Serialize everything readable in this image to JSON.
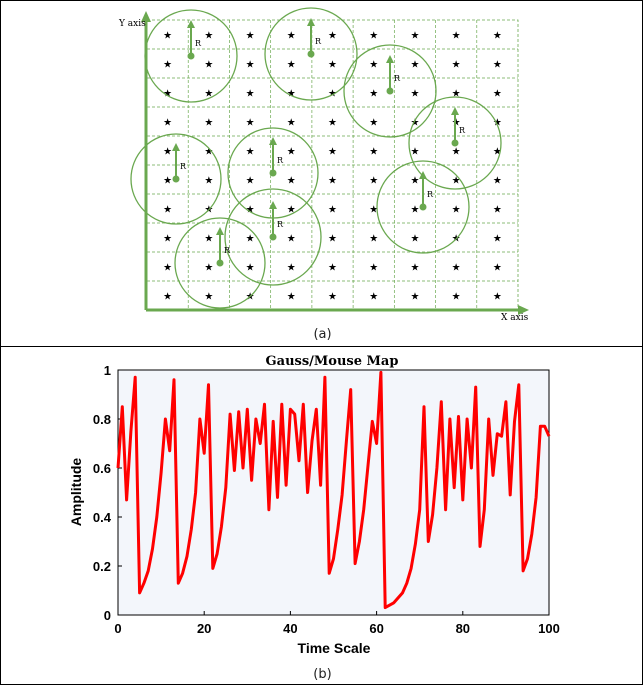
{
  "colors": {
    "green": "#6aa84f",
    "red": "#ff0000",
    "plot_bg": "#f3f6fb",
    "black": "#000000"
  },
  "diagram": {
    "y_axis_label": "Y axis",
    "x_axis_label": "X axis",
    "radius_label": "R",
    "caption": "(a)",
    "marker": "★",
    "grid_cols": 9,
    "grid_rows": 10,
    "circle_count": 9
  },
  "chart_data": {
    "type": "line",
    "title": "Gauss/Mouse Map",
    "xlabel": "Time Scale",
    "ylabel": "Amplitude",
    "xlim": [
      0,
      100
    ],
    "ylim": [
      0,
      1
    ],
    "xticks": [
      0,
      20,
      40,
      60,
      80,
      100
    ],
    "yticks": [
      0,
      0.2,
      0.4,
      0.6,
      0.8,
      1
    ],
    "series": [
      {
        "color": "#ff0000",
        "x": [
          0,
          1,
          2,
          3,
          4,
          5,
          6,
          7,
          8,
          9,
          10,
          11,
          12,
          13,
          14,
          15,
          16,
          17,
          18,
          19,
          20,
          21,
          22,
          23,
          24,
          25,
          26,
          27,
          28,
          29,
          30,
          31,
          32,
          33,
          34,
          35,
          36,
          37,
          38,
          39,
          40,
          41,
          42,
          43,
          44,
          45,
          46,
          47,
          48,
          49,
          50,
          51,
          52,
          53,
          54,
          55,
          56,
          57,
          58,
          59,
          60,
          61,
          62,
          63,
          64,
          65,
          66,
          67,
          68,
          69,
          70,
          71,
          72,
          73,
          74,
          75,
          76,
          77,
          78,
          79,
          80,
          81,
          82,
          83,
          84,
          85,
          86,
          87,
          88,
          89,
          90,
          91,
          92,
          93,
          94,
          95,
          96,
          97,
          98,
          99,
          100
        ],
        "y": [
          0.6,
          0.85,
          0.47,
          0.75,
          0.97,
          0.09,
          0.13,
          0.18,
          0.27,
          0.4,
          0.58,
          0.8,
          0.67,
          0.96,
          0.13,
          0.17,
          0.24,
          0.35,
          0.5,
          0.8,
          0.66,
          0.94,
          0.19,
          0.25,
          0.36,
          0.52,
          0.82,
          0.59,
          0.83,
          0.6,
          0.84,
          0.55,
          0.8,
          0.7,
          0.86,
          0.43,
          0.79,
          0.48,
          0.86,
          0.53,
          0.84,
          0.82,
          0.63,
          0.86,
          0.5,
          0.71,
          0.84,
          0.53,
          0.97,
          0.17,
          0.23,
          0.35,
          0.49,
          0.71,
          0.92,
          0.21,
          0.3,
          0.43,
          0.61,
          0.79,
          0.7,
          0.99,
          0.03,
          0.04,
          0.05,
          0.07,
          0.09,
          0.13,
          0.19,
          0.29,
          0.43,
          0.85,
          0.3,
          0.41,
          0.6,
          0.87,
          0.43,
          0.8,
          0.52,
          0.81,
          0.47,
          0.8,
          0.6,
          0.93,
          0.28,
          0.43,
          0.8,
          0.57,
          0.74,
          0.73,
          0.87,
          0.49,
          0.79,
          0.94,
          0.18,
          0.23,
          0.33,
          0.48,
          0.77,
          0.77,
          0.73
        ]
      }
    ],
    "caption": "(b)"
  }
}
